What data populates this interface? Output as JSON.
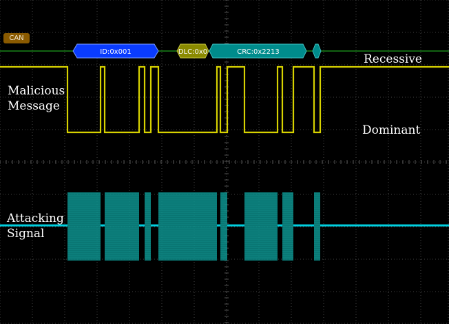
{
  "protocol_badge": "CAN",
  "decode_fields": [
    {
      "label": "ID:0x001",
      "color": "#0a3cff"
    },
    {
      "label": "DLC:0x0",
      "color": "#8a8a00"
    },
    {
      "label": "CRC:0x2213",
      "color": "#008c8c"
    },
    {
      "label": "",
      "color": "#008c8c"
    }
  ],
  "annotations": {
    "recessive": "Recessive",
    "dominant": "Dominant",
    "malicious_line1": "Malicious",
    "malicious_line2": "Message",
    "attacking_line1": "Attacking",
    "attacking_line2": "Signal"
  },
  "colors": {
    "can_trace": "#d7d200",
    "attack_trace": "#00d0e0",
    "attack_fill": "#0a8a86",
    "decode_line": "#1fa01f",
    "grid": "#4a4a4a"
  }
}
